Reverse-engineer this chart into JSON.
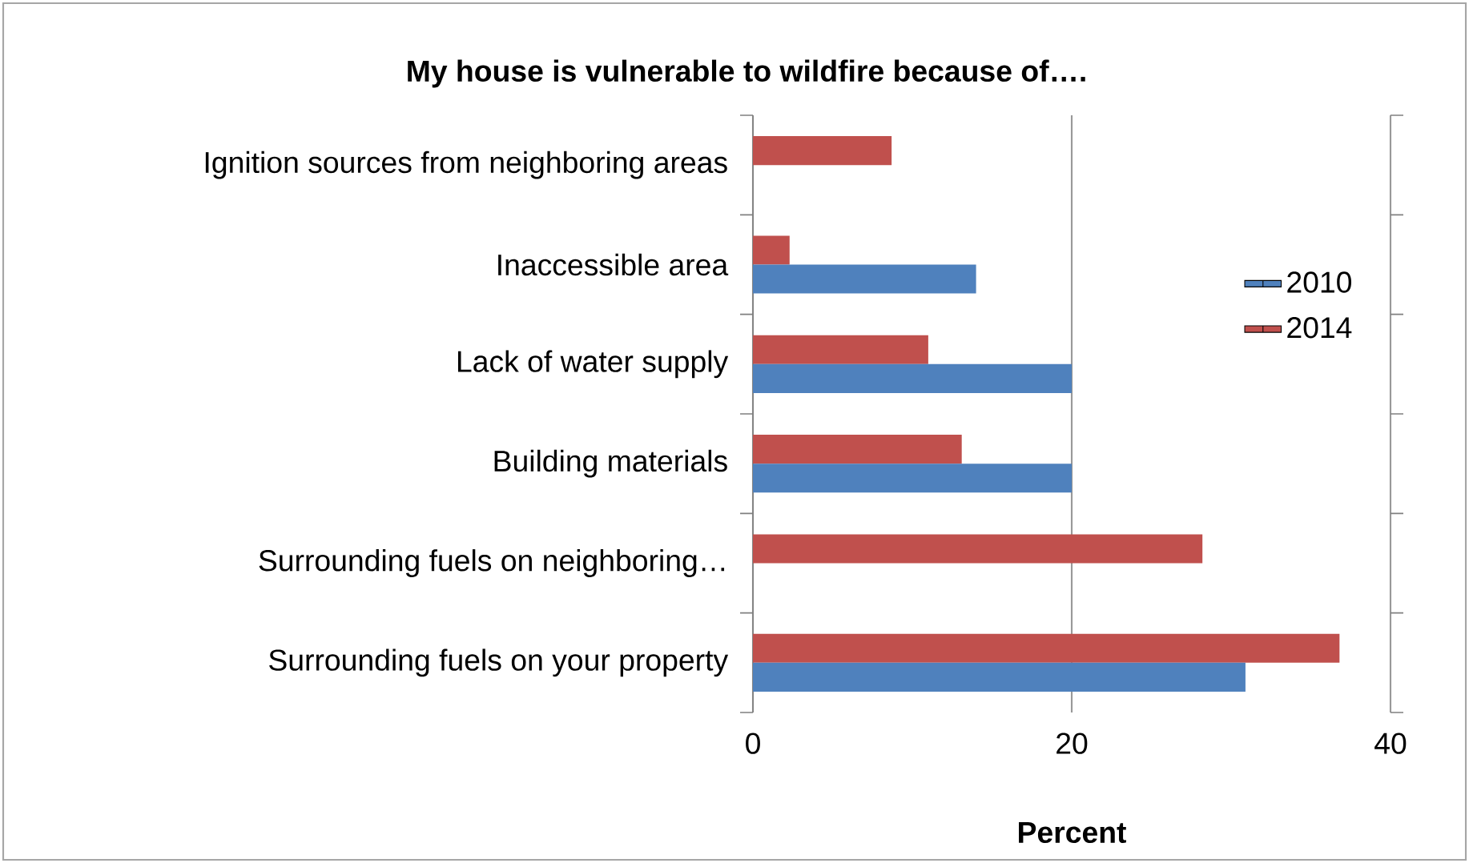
{
  "chart_data": {
    "type": "bar",
    "orientation": "horizontal",
    "title": "My house is vulnerable to wildfire because of….",
    "xlabel": "Percent",
    "categories": [
      "Ignition sources from neighboring areas",
      "Inaccessible area",
      "Lack of water supply",
      "Building materials",
      "Surrounding fuels on neighboring…",
      "Surrounding fuels on your property"
    ],
    "series": [
      {
        "name": "2014",
        "color": "#c0504d",
        "values": [
          8.7,
          2.3,
          11.0,
          13.1,
          28.2,
          36.8
        ]
      },
      {
        "name": "2010",
        "color": "#4f81bd",
        "values": [
          null,
          14.0,
          20.0,
          20.0,
          null,
          30.9
        ]
      }
    ],
    "xlim": [
      0,
      40
    ],
    "xticks": [
      0,
      20,
      40
    ],
    "grid": "x",
    "legend": "right"
  }
}
